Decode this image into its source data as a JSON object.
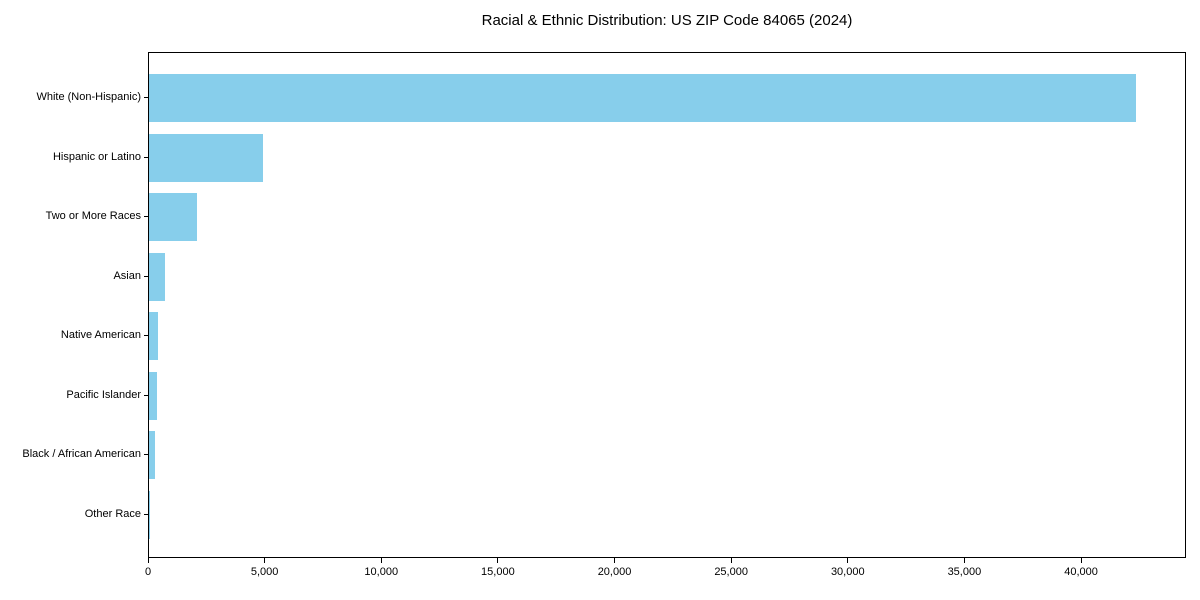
{
  "chart_data": {
    "type": "bar",
    "orientation": "horizontal",
    "title": "Racial & Ethnic Distribution: US ZIP Code 84065 (2024)",
    "categories": [
      "White (Non-Hispanic)",
      "Hispanic or Latino",
      "Two or More Races",
      "Asian",
      "Native American",
      "Pacific Islander",
      "Black / African American",
      "Other Race"
    ],
    "values": [
      42400,
      4880,
      2060,
      690,
      390,
      350,
      260,
      30
    ],
    "xlabel": "",
    "ylabel": "",
    "xlim": [
      0,
      44500
    ],
    "x_ticks": [
      0,
      5000,
      10000,
      15000,
      20000,
      25000,
      30000,
      35000,
      40000
    ],
    "x_tick_labels": [
      "0",
      "5,000",
      "10,000",
      "15,000",
      "20,000",
      "25,000",
      "30,000",
      "35,000",
      "40,000"
    ],
    "grid": false,
    "legend": false,
    "bar_color": "#87CEEB",
    "background_color": "#FFFFFF",
    "axis_color": "#000000",
    "text_color": "#000000"
  }
}
